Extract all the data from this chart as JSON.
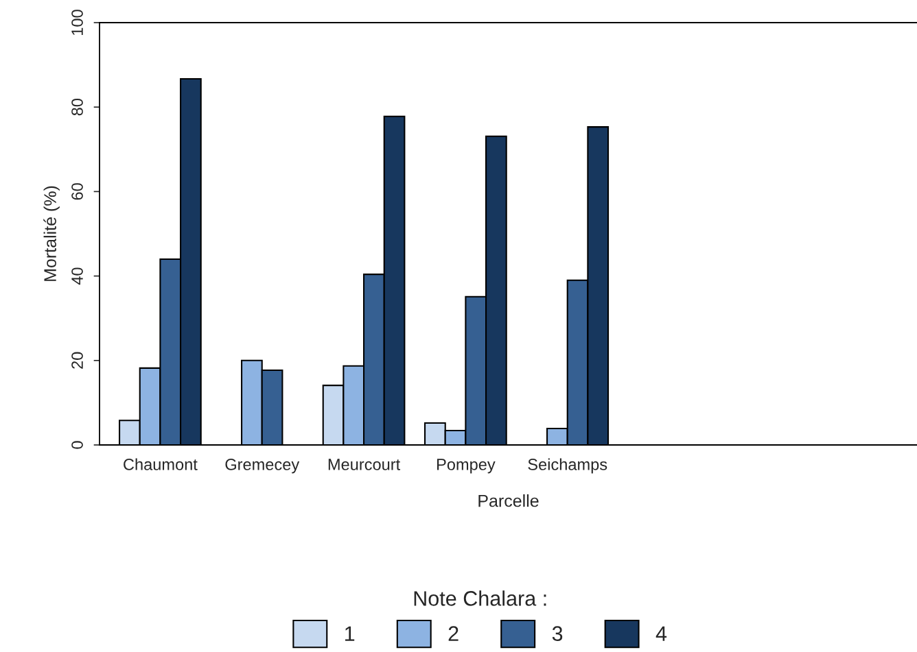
{
  "chart_data": {
    "type": "bar",
    "xlabel": "Parcelle",
    "ylabel": "Mortalité (%)",
    "legend_title": "Note Chalara :",
    "legend": "bottom",
    "grid": false,
    "categories": [
      "Chaumont",
      "Gremecey",
      "Meurcourt",
      "Pompey",
      "Seichamps"
    ],
    "ylim": [
      0,
      100
    ],
    "yticks": [
      0,
      20,
      40,
      60,
      80,
      100
    ],
    "series": [
      {
        "name": "1",
        "color": "#c6d9f0",
        "values": [
          5.8,
          null,
          14.1,
          5.2,
          null
        ]
      },
      {
        "name": "2",
        "color": "#8db3e2",
        "values": [
          18.2,
          20.0,
          18.7,
          3.4,
          3.9
        ]
      },
      {
        "name": "3",
        "color": "#366092",
        "values": [
          44.0,
          17.7,
          40.4,
          35.1,
          39.0
        ]
      },
      {
        "name": "4",
        "color": "#17375e",
        "values": [
          86.7,
          null,
          77.8,
          73.1,
          75.3
        ]
      }
    ]
  }
}
